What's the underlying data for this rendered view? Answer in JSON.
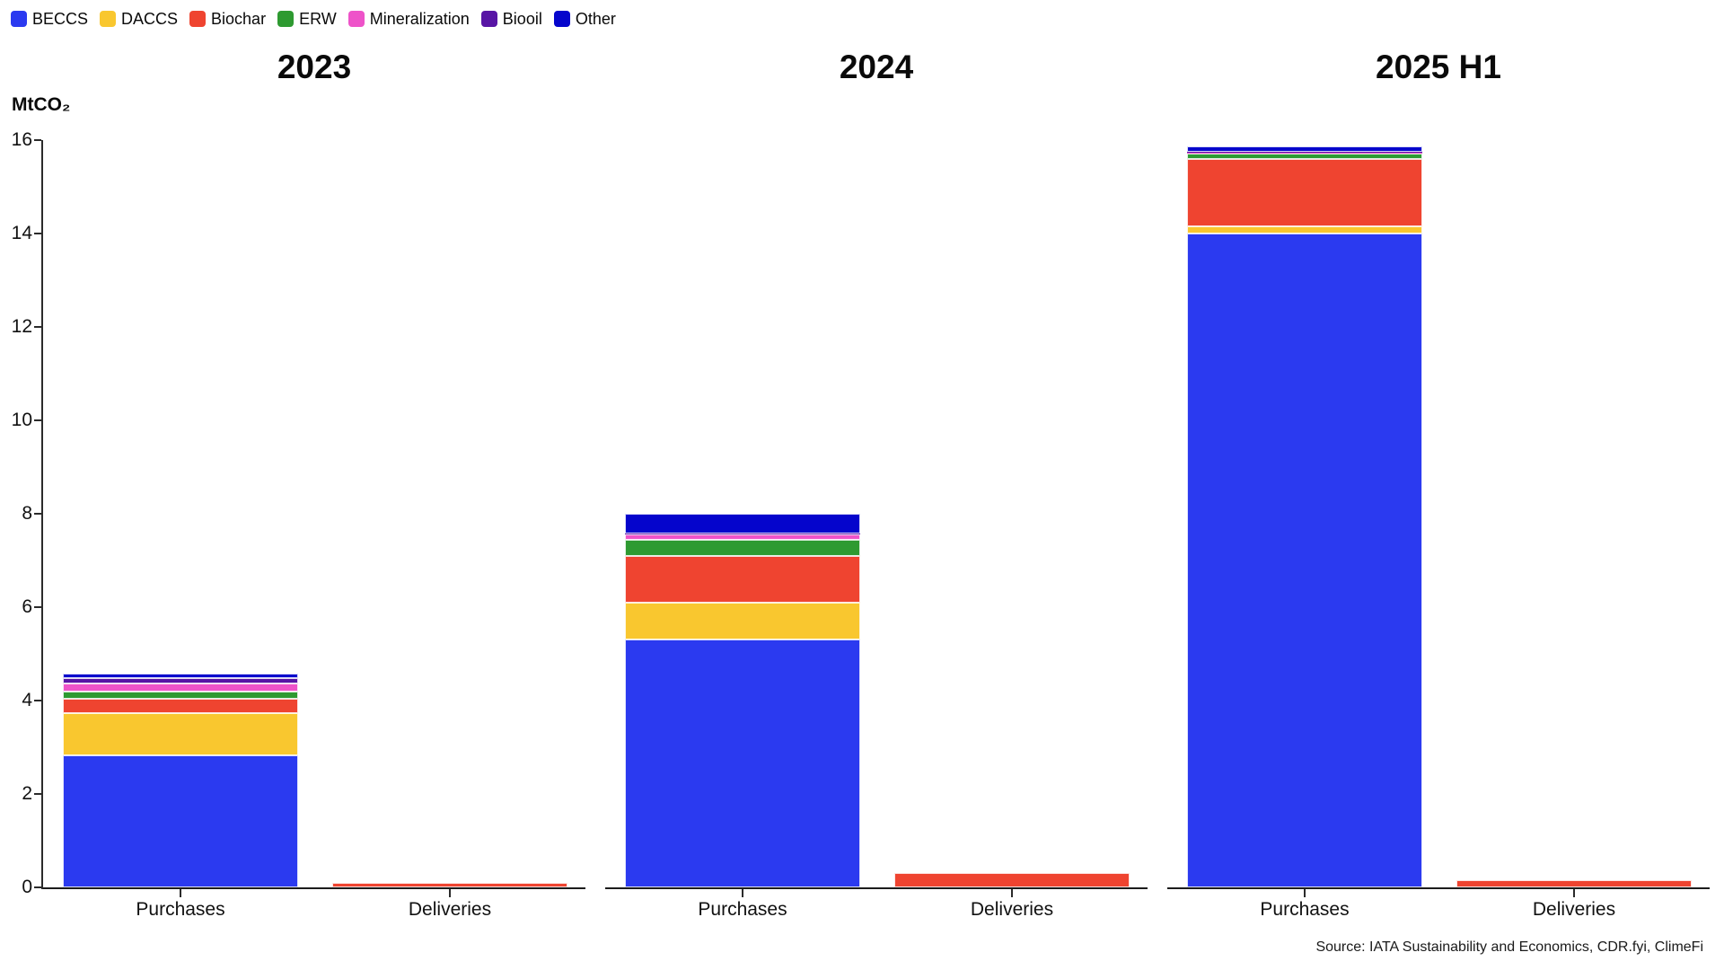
{
  "source": "Source: IATA Sustainability and Economics, CDR.fyi, ClimeFi",
  "chart_data": {
    "type": "bar",
    "stacked": true,
    "title": "",
    "ylabel": "MtCO₂",
    "xlabel": "",
    "ylim": [
      0,
      16
    ],
    "yticks": [
      0,
      2,
      4,
      6,
      8,
      10,
      12,
      14,
      16
    ],
    "grid": false,
    "legend_position": "top-left",
    "legend": [
      {
        "label": "BECCS",
        "color": "#2b3af0"
      },
      {
        "label": "DACCS",
        "color": "#f9c72f"
      },
      {
        "label": "Biochar",
        "color": "#ef4430"
      },
      {
        "label": "ERW",
        "color": "#2e9a31"
      },
      {
        "label": "Mineralization",
        "color": "#ee53c9"
      },
      {
        "label": "Biooil",
        "color": "#5815a5"
      },
      {
        "label": "Other",
        "color": "#0505cc"
      }
    ],
    "panels": [
      {
        "title": "2023",
        "categories": [
          "Purchases",
          "Deliveries"
        ],
        "bars": [
          {
            "category": "Purchases",
            "total": 4.6,
            "values": {
              "BECCS": 2.83,
              "DACCS": 0.9,
              "Biochar": 0.3,
              "ERW": 0.17,
              "Mineralization": 0.16,
              "Biooil": 0.12,
              "Other": 0.1
            }
          },
          {
            "category": "Deliveries",
            "total": 0.1,
            "values": {
              "Biochar": 0.1
            }
          }
        ]
      },
      {
        "title": "2024",
        "categories": [
          "Purchases",
          "Deliveries"
        ],
        "bars": [
          {
            "category": "Purchases",
            "total": 8.0,
            "values": {
              "BECCS": 5.3,
              "DACCS": 0.8,
              "Biochar": 1.0,
              "ERW": 0.35,
              "Mineralization": 0.1,
              "Biooil": 0.02,
              "Other": 0.43
            }
          },
          {
            "category": "Deliveries",
            "total": 0.3,
            "values": {
              "Biochar": 0.3
            }
          }
        ]
      },
      {
        "title": "2025 H1",
        "categories": [
          "Purchases",
          "Deliveries"
        ],
        "bars": [
          {
            "category": "Purchases",
            "total": 15.86,
            "values": {
              "BECCS": 14.0,
              "DACCS": 0.15,
              "Biochar": 1.45,
              "ERW": 0.12,
              "Mineralization": 0.02,
              "Biooil": 0.01,
              "Other": 0.11
            }
          },
          {
            "category": "Deliveries",
            "total": 0.15,
            "values": {
              "Biochar": 0.15
            }
          }
        ]
      }
    ]
  }
}
